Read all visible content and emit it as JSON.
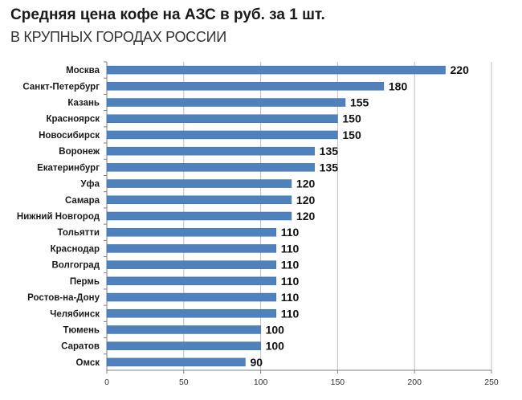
{
  "title": "Средняя цена кофе на АЗС в руб. за 1 шт.",
  "subtitle": "В КРУПНЫХ ГОРОДАХ РОССИИ",
  "colors": {
    "bar": "#4f81bd",
    "bar_edge": "#3f6ea8",
    "grid": "#bfbfbf",
    "axis": "#7f7f7f"
  },
  "chart_data": {
    "type": "bar",
    "orientation": "horizontal",
    "categories": [
      "Москва",
      "Санкт-Петербург",
      "Казань",
      "Красноярск",
      "Новосибирск",
      "Воронеж",
      "Екатеринбург",
      "Уфа",
      "Самара",
      "Нижний Новгород",
      "Тольятти",
      "Краснодар",
      "Волгоград",
      "Пермь",
      "Ростов-на-Дону",
      "Челябинск",
      "Тюмень",
      "Саратов",
      "Омск"
    ],
    "values": [
      220,
      180,
      155,
      150,
      150,
      135,
      135,
      120,
      120,
      120,
      110,
      110,
      110,
      110,
      110,
      110,
      100,
      100,
      90
    ],
    "xlim": [
      0,
      250
    ],
    "xticks": [
      0,
      50,
      100,
      150,
      200,
      250
    ],
    "grid": true,
    "data_labels": true
  }
}
